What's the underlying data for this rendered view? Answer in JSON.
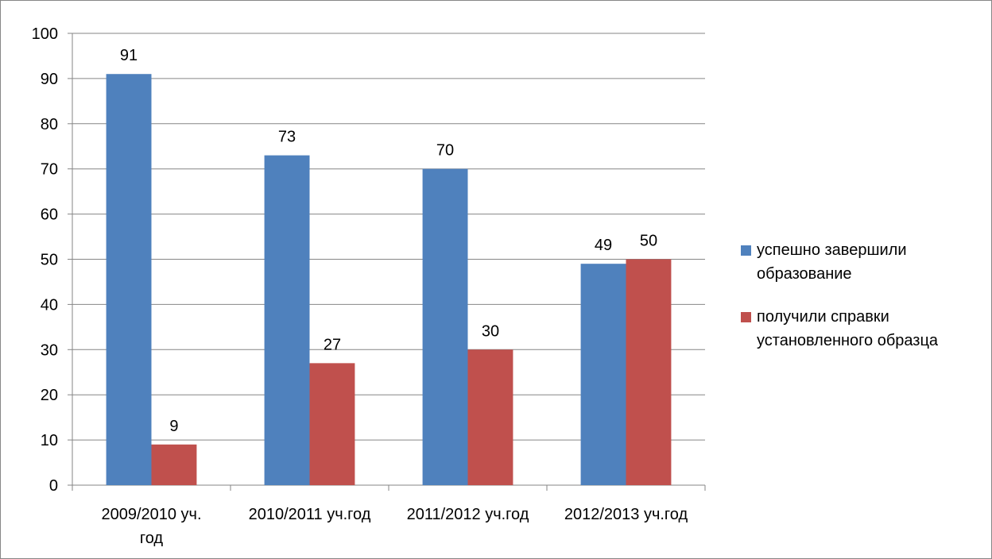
{
  "chart_data": {
    "type": "bar",
    "title": "",
    "xlabel": "",
    "ylabel": "",
    "categories": [
      [
        "2009/2010 уч.",
        "год"
      ],
      [
        "2010/2011 уч.год"
      ],
      [
        "2011/2012 уч.год"
      ],
      [
        "2012/2013 уч.год"
      ]
    ],
    "series": [
      {
        "name": "успешно завершили образование",
        "legend_lines": [
          "успешно завершили",
          "образование"
        ],
        "color": "#4F81BD",
        "values": [
          91,
          73,
          70,
          49
        ]
      },
      {
        "name": "получили справки установленного образца",
        "legend_lines": [
          "получили справки",
          "установленного образца"
        ],
        "color": "#C0504D",
        "values": [
          9,
          27,
          30,
          50
        ]
      }
    ],
    "ylim": [
      0,
      100
    ],
    "yticks": [
      0,
      10,
      20,
      30,
      40,
      50,
      60,
      70,
      80,
      90,
      100
    ],
    "grid": true,
    "data_labels": true,
    "legend_position": "right"
  }
}
